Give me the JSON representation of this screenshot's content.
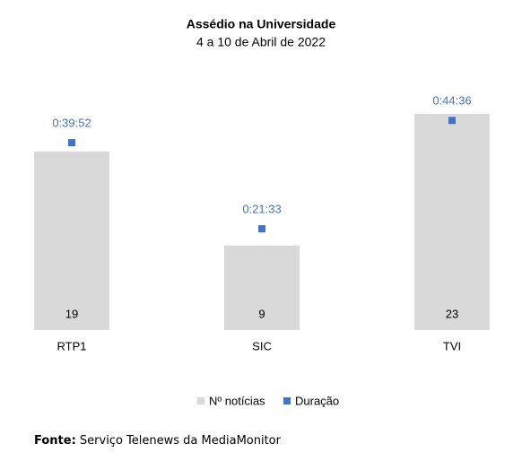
{
  "chart_data": {
    "type": "bar-marker",
    "title": "Assédio na Universidade",
    "subtitle": "4 a 10 de Abril de 2022",
    "categories": [
      "RTP1",
      "SIC",
      "TVI"
    ],
    "series": [
      {
        "name": "Nº notícias",
        "color": "#d9d9d9",
        "values": [
          19,
          9,
          23
        ]
      },
      {
        "name": "Duração",
        "color": "#4472c4",
        "axis": "y2",
        "values": [
          2392,
          1293,
          2676
        ],
        "value_labels": [
          "0:39:52",
          "0:21:33",
          "0:44:36"
        ]
      }
    ],
    "ylim": [
      0,
      25
    ],
    "y2lim": [
      0,
      3000
    ],
    "source_label": "Fonte:",
    "source": "Serviço Telenews da MediaMonitor"
  }
}
